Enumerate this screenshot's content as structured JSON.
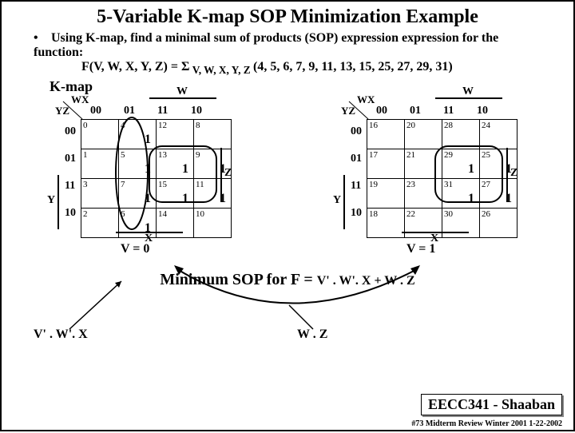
{
  "title": "5-Variable K-map SOP Minimization Example",
  "bullet": "Using K-map,  find a minimal sum of products (SOP) expression expression for the function:",
  "func_lhs": "F(V, W, X, Y, Z) = ",
  "func_sigma": "Σ",
  "func_sub": " V, W, X, Y, Z ",
  "func_rhs": "(4, 5, 6, 7, 9, 11, 13, 15, 25, 27, 29, 31)",
  "kmap_title": "K-map",
  "col_labels": [
    "00",
    "01",
    "11",
    "10"
  ],
  "row_labels": [
    "00",
    "01",
    "11",
    "10"
  ],
  "wx": "WX",
  "yz": "YZ",
  "W": "W",
  "X": "X",
  "Y": "Y",
  "Z": "Z",
  "map0": {
    "vlabel": "V = 0",
    "cells": [
      [
        {
          "i": "0"
        },
        {
          "i": "4",
          "m": "1"
        },
        {
          "i": "12"
        },
        {
          "i": "8"
        }
      ],
      [
        {
          "i": "1"
        },
        {
          "i": "5",
          "m": "1"
        },
        {
          "i": "13",
          "m": "1"
        },
        {
          "i": "9",
          "m": "1"
        }
      ],
      [
        {
          "i": "3"
        },
        {
          "i": "7",
          "m": "1"
        },
        {
          "i": "15",
          "m": "1"
        },
        {
          "i": "11",
          "m": "1"
        }
      ],
      [
        {
          "i": "2"
        },
        {
          "i": "6",
          "m": "1"
        },
        {
          "i": "14"
        },
        {
          "i": "10"
        }
      ]
    ]
  },
  "map1": {
    "vlabel": "V = 1",
    "cells": [
      [
        {
          "i": "16"
        },
        {
          "i": "20"
        },
        {
          "i": "28"
        },
        {
          "i": "24"
        }
      ],
      [
        {
          "i": "17"
        },
        {
          "i": "21"
        },
        {
          "i": "29",
          "m": "1"
        },
        {
          "i": "25",
          "m": "1"
        }
      ],
      [
        {
          "i": "19"
        },
        {
          "i": "23"
        },
        {
          "i": "31",
          "m": "1"
        },
        {
          "i": "27",
          "m": "1"
        }
      ],
      [
        {
          "i": "18"
        },
        {
          "i": "22"
        },
        {
          "i": "30"
        },
        {
          "i": "26"
        }
      ]
    ]
  },
  "term1": "V' . W'. X",
  "term2": "W . Z",
  "minsop_a": "Minimum SOP for  F  = ",
  "minsop_b": "V' . W'. X  +  W . Z",
  "footer": "EECC341 - Shaaban",
  "footer2": "#73   Midterm Review   Winter 2001  1-22-2002"
}
